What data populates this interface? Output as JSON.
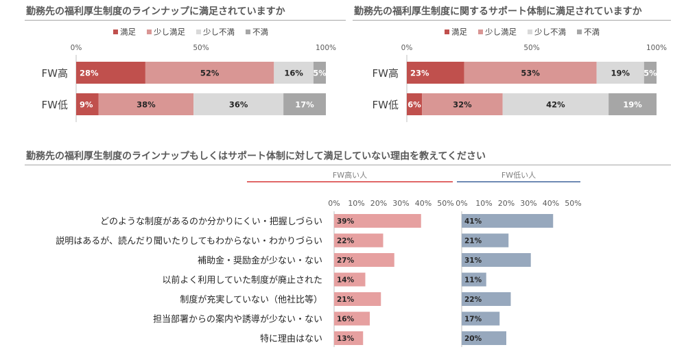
{
  "colors": {
    "manzoku": "#c0504d",
    "sukoshi_manzoku": "#d99694",
    "sukoshi_fuman": "#d9d9d9",
    "fuman": "#a6a6a6",
    "fw_high": "#e6a0a0",
    "fw_low": "#97a8bd",
    "fw_high_rule": "#e06666",
    "fw_low_rule": "#6d89b3"
  },
  "top_titles": {
    "left": "勤務先の福利厚生制度のラインナップに満足されていますか",
    "right": "勤務先の福利厚生制度に関するサポート体制に満足されていますか"
  },
  "bottom_title": "勤務先の福利厚生制度のラインナップもしくはサポート体制に対して満足していない理由を教えてください",
  "chart_data": [
    {
      "type": "bar",
      "orientation": "horizontal",
      "stacked": true,
      "title": "勤務先の福利厚生制度のラインナップに満足されていますか",
      "categories": [
        "FW高",
        "FW低"
      ],
      "series": [
        {
          "name": "満足",
          "values": [
            28,
            9
          ]
        },
        {
          "name": "少し満足",
          "values": [
            52,
            38
          ]
        },
        {
          "name": "少し不満",
          "values": [
            16,
            36
          ]
        },
        {
          "name": "不満",
          "values": [
            5,
            17
          ]
        }
      ],
      "xlim": [
        0,
        100
      ],
      "x_ticks": [
        "0%",
        "50%",
        "100%"
      ],
      "legend": "top"
    },
    {
      "type": "bar",
      "orientation": "horizontal",
      "stacked": true,
      "title": "勤務先の福利厚生制度に関するサポート体制に満足されていますか",
      "categories": [
        "FW高",
        "FW低"
      ],
      "series": [
        {
          "name": "満足",
          "values": [
            23,
            6
          ]
        },
        {
          "name": "少し満足",
          "values": [
            53,
            32
          ]
        },
        {
          "name": "少し不満",
          "values": [
            19,
            42
          ]
        },
        {
          "name": "不満",
          "values": [
            5,
            19
          ]
        }
      ],
      "xlim": [
        0,
        100
      ],
      "x_ticks": [
        "0%",
        "50%",
        "100%"
      ],
      "legend": "top"
    },
    {
      "type": "bar",
      "orientation": "horizontal",
      "title": "勤務先の福利厚生制度のラインナップもしくはサポート体制に対して満足していない理由を教えてください",
      "categories": [
        "どのような制度があるのか分かりにくい・把握しづらい",
        "説明はあるが、読んだり聞いたりしてもわからない・わかりづらい",
        "補助金・奨励金が少ない・ない",
        "以前よく利用していた制度が廃止された",
        "制度が充実していない（他社比等）",
        "担当部署からの案内や誘導が少ない・ない",
        "特に理由はない"
      ],
      "series": [
        {
          "name": "FW高い人",
          "values": [
            39,
            22,
            27,
            14,
            21,
            16,
            13
          ]
        },
        {
          "name": "FW低い人",
          "values": [
            41,
            21,
            31,
            11,
            22,
            17,
            20
          ]
        }
      ],
      "xlim": [
        0,
        50
      ],
      "x_ticks": [
        "0%",
        "10%",
        "20%",
        "30%",
        "40%",
        "50%"
      ]
    }
  ]
}
